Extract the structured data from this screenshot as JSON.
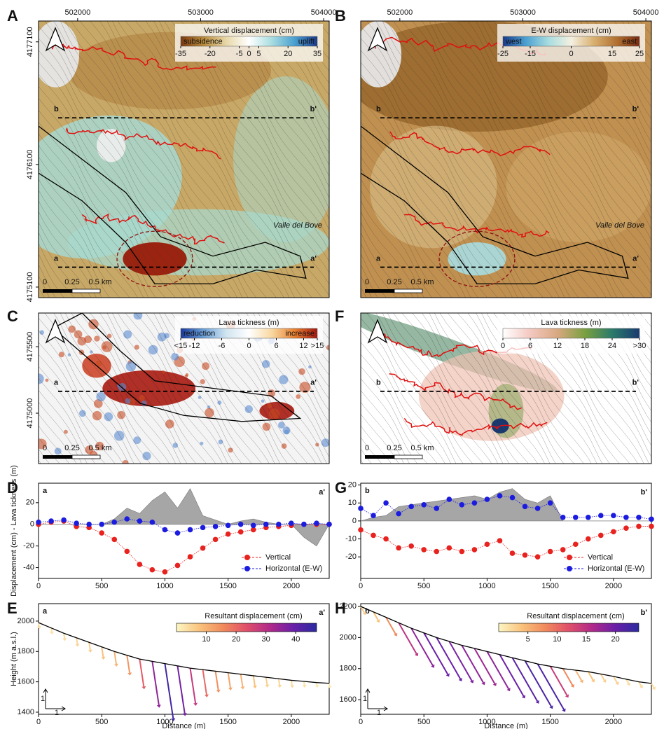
{
  "maps": [
    {
      "panel": "A",
      "xlim": [
        501682,
        504045
      ],
      "xticks": [
        502000,
        503000,
        504000
      ],
      "ylim": [
        4175014,
        4177270
      ],
      "yticks": [
        4175100,
        4176100,
        4177100
      ],
      "colorbar": {
        "title": "Vertical displacement (cm)",
        "low_label": "subsidence",
        "high_label": "uplift",
        "clim": [
          -35,
          35
        ],
        "ticks": [
          -35,
          -20,
          -5,
          0,
          5,
          20,
          35
        ],
        "colors": [
          "#7a3a10",
          "#b88a3a",
          "#e8d8a8",
          "#ffffff",
          "#a8dde0",
          "#4aa0d0",
          "#1a3a8a"
        ]
      },
      "profiles": [
        {
          "start": "b",
          "end": "b'"
        },
        {
          "start": "a",
          "end": "a'"
        }
      ],
      "place_label": "Valle del Bove",
      "scalebar": [
        "0",
        "0.25",
        "0.5 km"
      ]
    },
    {
      "panel": "B",
      "xlim": [
        501682,
        504045
      ],
      "xticks": [
        502000,
        503000,
        504000
      ],
      "colorbar": {
        "title": "E-W displacement (cm)",
        "low_label": "west",
        "high_label": "east",
        "clim": [
          -25,
          25
        ],
        "ticks": [
          -25,
          -15,
          0,
          15,
          25
        ],
        "colors": [
          "#1a3a8a",
          "#4aa0d0",
          "#a8dde0",
          "#f4f0e0",
          "#d8b070",
          "#b07030",
          "#7a2a10"
        ]
      },
      "profiles": [
        {
          "start": "b",
          "end": "b'"
        },
        {
          "start": "a",
          "end": "a'"
        }
      ],
      "place_label": "Valle del Bove",
      "scalebar": [
        "0",
        "0.25",
        "0.5 km"
      ]
    },
    {
      "panel": "C",
      "ylim": [
        4174621,
        4175753
      ],
      "yticks": [
        4175000,
        4175500
      ],
      "colorbar": {
        "title": "Lava tickness (m)",
        "low_label": "reduction",
        "high_label": "increase",
        "clim": [
          -15,
          15
        ],
        "ticks": [
          {
            "value": -15,
            "label": "<15"
          },
          -12,
          -6,
          0,
          6,
          12,
          {
            "value": 15,
            "label": ">15"
          }
        ],
        "colors": [
          "#1a3a9a",
          "#6aa0d8",
          "#d0e4f0",
          "#ffffff",
          "#f8d8a0",
          "#e88030",
          "#a01810"
        ]
      },
      "profiles": [
        {
          "start": "a",
          "end": "a'"
        }
      ],
      "scalebar": [
        "0",
        "0.25",
        "0.5 km"
      ]
    },
    {
      "panel": "F",
      "colorbar": {
        "title": "Lava tickness (m)",
        "clim": [
          0,
          30
        ],
        "ticks": [
          0,
          6,
          12,
          18,
          24,
          {
            "value": 30,
            "label": ">30"
          }
        ],
        "colors": [
          "#ffffff",
          "#f4c8c0",
          "#d8a880",
          "#7aa040",
          "#2a7a6a",
          "#1a3a70"
        ]
      },
      "profiles": [
        {
          "start": "b",
          "end": "b'"
        }
      ],
      "scalebar": [
        "0",
        "0.25",
        "0.5 km"
      ]
    }
  ],
  "chart_data": [
    {
      "type": "scatter",
      "panel": "D",
      "start_label": "a",
      "end_label": "a'",
      "ylabel": "Displacement (cm) - Lava tickness (m)",
      "x": [
        0,
        100,
        200,
        300,
        400,
        500,
        600,
        700,
        800,
        900,
        1000,
        1100,
        1200,
        1300,
        1400,
        1500,
        1600,
        1700,
        1800,
        1900,
        2000,
        2100,
        2200,
        2300
      ],
      "xlim": [
        0,
        2300
      ],
      "xticks": [
        0,
        500,
        1000,
        1500,
        2000
      ],
      "ylim": [
        -50,
        38
      ],
      "yticks": [
        -40,
        -20,
        0,
        20
      ],
      "legend": "lower right",
      "area": {
        "color": "#a6a6a6",
        "values": [
          0,
          0,
          0,
          0,
          0,
          0,
          5,
          15,
          10,
          22,
          30,
          15,
          33,
          8,
          4,
          0,
          3,
          5,
          2,
          0,
          0,
          -12,
          -20,
          0
        ]
      },
      "series": [
        {
          "name": "Vertical",
          "color": "#e8221e",
          "values": [
            0,
            2,
            3,
            -2,
            -3,
            -8,
            -14,
            -25,
            -37,
            -42,
            -44,
            -38,
            -30,
            -22,
            -14,
            -9,
            -7,
            -5,
            -3,
            -2,
            -1,
            0,
            0,
            0
          ]
        },
        {
          "name": "Horizontal (E-W)",
          "color": "#1c1ce0",
          "values": [
            2,
            3,
            4,
            1,
            0,
            0,
            2,
            5,
            3,
            2,
            -5,
            -8,
            -5,
            -3,
            -2,
            -1,
            0,
            -1,
            0,
            0,
            1,
            0,
            1,
            0
          ]
        }
      ]
    },
    {
      "type": "scatter",
      "panel": "G",
      "start_label": "b",
      "end_label": "b'",
      "x": [
        0,
        100,
        200,
        300,
        400,
        500,
        600,
        700,
        800,
        900,
        1000,
        1100,
        1200,
        1300,
        1400,
        1500,
        1600,
        1700,
        1800,
        1900,
        2000,
        2100,
        2200,
        2300
      ],
      "xlim": [
        0,
        2300
      ],
      "xticks": [
        0,
        500,
        1000,
        1500,
        2000
      ],
      "ylim": [
        -32,
        21
      ],
      "yticks": [
        -20,
        -10,
        0,
        10,
        20
      ],
      "legend": "lower right",
      "area": {
        "color": "#a6a6a6",
        "values": [
          0,
          2,
          3,
          8,
          9,
          10,
          11,
          12,
          13,
          14,
          12,
          16,
          18,
          12,
          10,
          14,
          0,
          0,
          0,
          0,
          0,
          0,
          0,
          0
        ]
      },
      "series": [
        {
          "name": "Vertical",
          "color": "#e8221e",
          "values": [
            -5,
            -8,
            -10,
            -15,
            -14,
            -16,
            -17,
            -15,
            -17,
            -16,
            -13,
            -11,
            -18,
            -19,
            -20,
            -17,
            -16,
            -13,
            -10,
            -8,
            -6,
            -4,
            -3,
            -3
          ]
        },
        {
          "name": "Horizontal (E-W)",
          "color": "#1c1ce0",
          "values": [
            7,
            3,
            10,
            4,
            8,
            9,
            7,
            12,
            9,
            10,
            12,
            14,
            13,
            8,
            7,
            10,
            2,
            2,
            2,
            3,
            3,
            2,
            2,
            1
          ]
        }
      ]
    },
    {
      "type": "profile",
      "panel": "E",
      "start_label": "a",
      "end_label": "a'",
      "xlabel": "Distance (m)",
      "ylabel": "Height (m a.s.l.)",
      "aspect_labels": [
        "1",
        "1"
      ],
      "x": [
        0,
        100,
        200,
        300,
        400,
        500,
        600,
        700,
        800,
        900,
        1000,
        1100,
        1200,
        1300,
        1400,
        1500,
        1600,
        1700,
        1800,
        1900,
        2000,
        2100,
        2200,
        2300
      ],
      "xlim": [
        0,
        2300
      ],
      "xticks": [
        0,
        500,
        1000,
        1500,
        2000
      ],
      "ylim": [
        1386,
        2115
      ],
      "yticks": [
        1400,
        1600,
        1800,
        2000
      ],
      "elevation": [
        1990,
        1955,
        1920,
        1890,
        1860,
        1830,
        1800,
        1775,
        1750,
        1735,
        1720,
        1705,
        1690,
        1680,
        1670,
        1660,
        1650,
        1640,
        1630,
        1620,
        1610,
        1603,
        1595,
        1590
      ],
      "displacement": [
        3,
        3,
        4,
        5,
        6,
        8,
        10,
        14,
        22,
        35,
        44,
        38,
        28,
        20,
        15,
        12,
        10,
        8,
        6,
        5,
        4,
        3,
        2,
        2
      ],
      "colorbar": {
        "title": "Resultant displacement (cm)",
        "clim": [
          0,
          47
        ],
        "ticks": [
          10,
          20,
          30,
          40
        ],
        "colors": [
          "#fcf6c4",
          "#f9c27c",
          "#f08a5c",
          "#e0506a",
          "#b02a8a",
          "#6a1fa8",
          "#2a2aa0"
        ]
      }
    },
    {
      "type": "profile",
      "panel": "H",
      "start_label": "b",
      "end_label": "b'",
      "xlabel": "Distance (m)",
      "aspect_labels": [
        "1",
        "1"
      ],
      "x": [
        0,
        100,
        200,
        300,
        400,
        500,
        600,
        700,
        800,
        900,
        1000,
        1100,
        1200,
        1300,
        1400,
        1500,
        1600,
        1700,
        1800,
        1900,
        2000,
        2100,
        2200,
        2300
      ],
      "xlim": [
        0,
        2300
      ],
      "xticks": [
        0,
        500,
        1000,
        1500,
        2000
      ],
      "ylim": [
        1506,
        2218
      ],
      "yticks": [
        1600,
        1800,
        2000,
        2200
      ],
      "elevation": [
        2200,
        2165,
        2130,
        2095,
        2060,
        2030,
        2000,
        1975,
        1950,
        1930,
        1910,
        1890,
        1870,
        1850,
        1830,
        1815,
        1800,
        1790,
        1780,
        1765,
        1750,
        1732,
        1715,
        1705
      ],
      "displacement": [
        3,
        4,
        8,
        15,
        18,
        20,
        20,
        19,
        18,
        17,
        18,
        20,
        21,
        22,
        22,
        14,
        8,
        5,
        4,
        3,
        3,
        2,
        2,
        2
      ],
      "colorbar": {
        "title": "Resultant displacement (cm)",
        "clim": [
          0,
          24
        ],
        "ticks": [
          5,
          10,
          15,
          20
        ],
        "colors": [
          "#fcf6c4",
          "#f9c27c",
          "#f08a5c",
          "#e0506a",
          "#b02a8a",
          "#6a1fa8",
          "#2a2aa0"
        ]
      }
    }
  ]
}
